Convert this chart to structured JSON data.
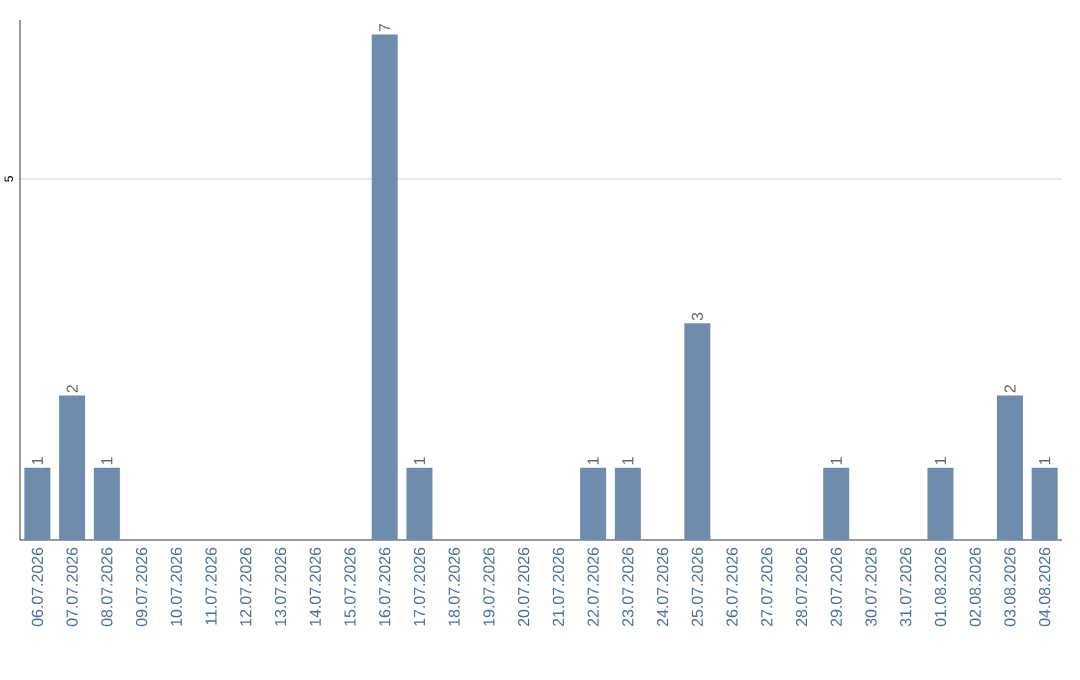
{
  "chart_data": {
    "type": "bar",
    "categories": [
      "06.07.2026",
      "07.07.2026",
      "08.07.2026",
      "09.07.2026",
      "10.07.2026",
      "11.07.2026",
      "12.07.2026",
      "13.07.2026",
      "14.07.2026",
      "15.07.2026",
      "16.07.2026",
      "17.07.2026",
      "18.07.2026",
      "19.07.2026",
      "20.07.2026",
      "21.07.2026",
      "22.07.2026",
      "23.07.2026",
      "24.07.2026",
      "25.07.2026",
      "26.07.2026",
      "27.07.2026",
      "28.07.2026",
      "29.07.2026",
      "30.07.2026",
      "31.07.2026",
      "01.08.2026",
      "02.08.2026",
      "03.08.2026",
      "04.08.2026"
    ],
    "values": [
      1,
      2,
      1,
      0,
      0,
      0,
      0,
      0,
      0,
      0,
      7,
      1,
      0,
      0,
      0,
      0,
      1,
      1,
      0,
      3,
      0,
      0,
      0,
      1,
      0,
      0,
      1,
      0,
      2,
      1
    ],
    "value_labels": [
      "1",
      "2",
      "1",
      null,
      null,
      null,
      null,
      null,
      null,
      null,
      "7",
      "1",
      null,
      null,
      null,
      null,
      "1",
      "1",
      null,
      "3",
      null,
      null,
      null,
      "1",
      null,
      null,
      "1",
      null,
      "2",
      "1"
    ],
    "color": "#6d8cae",
    "ylim": [
      0,
      7.2
    ],
    "yticks": [
      5
    ],
    "grid": "y"
  }
}
